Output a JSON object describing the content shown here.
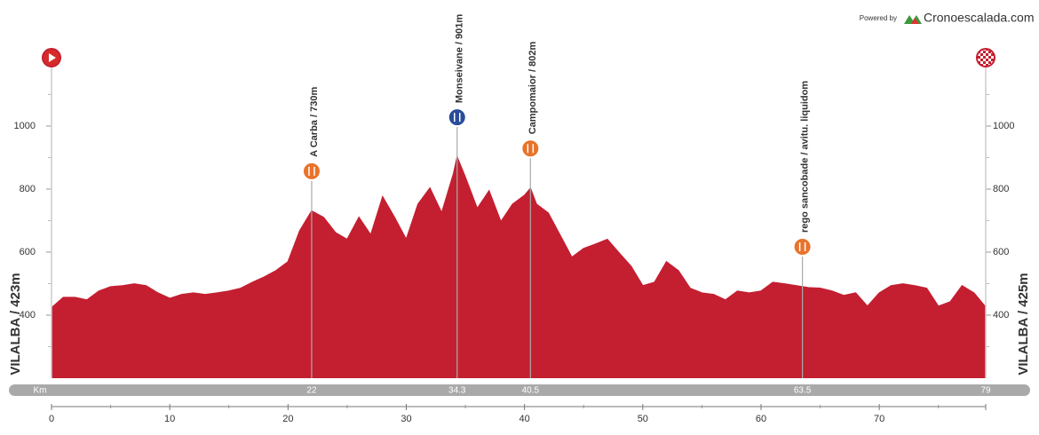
{
  "powered_by": "Powered by",
  "brand": "Cronoescalada.com",
  "chart_data": {
    "type": "area",
    "color": "#c41f30",
    "x": [
      0,
      1,
      2,
      3,
      4,
      5,
      6,
      7,
      8,
      9,
      10,
      11,
      12,
      13,
      14,
      15,
      16,
      17,
      18,
      19,
      20,
      21,
      22,
      23,
      24,
      25,
      26,
      27,
      28,
      29,
      30,
      31,
      32,
      33,
      34,
      34.3,
      35,
      36,
      37,
      38,
      39,
      40,
      40.5,
      41,
      42,
      43,
      44,
      45,
      46,
      47,
      48,
      49,
      50,
      51,
      52,
      53,
      54,
      55,
      56,
      57,
      58,
      59,
      60,
      61,
      62,
      63,
      64,
      65,
      66,
      67,
      68,
      69,
      70,
      71,
      72,
      73,
      74,
      75,
      76,
      77,
      78,
      79
    ],
    "values": [
      423,
      456,
      456,
      448,
      476,
      490,
      493,
      499,
      493,
      470,
      453,
      465,
      470,
      465,
      470,
      476,
      485,
      504,
      521,
      541,
      569,
      668,
      730,
      710,
      662,
      640,
      710,
      654,
      775,
      710,
      640,
      752,
      803,
      724,
      850,
      901,
      837,
      738,
      794,
      696,
      752,
      780,
      802,
      752,
      724,
      654,
      583,
      611,
      625,
      640,
      597,
      555,
      493,
      504,
      569,
      541,
      485,
      470,
      465,
      448,
      476,
      470,
      476,
      504,
      499,
      493,
      487,
      485,
      476,
      462,
      470,
      428,
      470,
      493,
      499,
      493,
      485,
      428,
      442,
      493,
      470,
      425
    ],
    "xlim": [
      0,
      79
    ],
    "xticks": [
      0,
      10,
      20,
      30,
      40,
      50,
      60,
      70
    ],
    "ylim": [
      200,
      1200
    ],
    "yticks": [
      400,
      600,
      800,
      1000
    ],
    "start_label": "VILALBA / 423m",
    "finish_label": "VILALBA / 425m",
    "km_label": "Km",
    "km_markers": [
      22,
      34.3,
      40.5,
      63.5,
      79
    ],
    "points": [
      {
        "label": "A Carba  / 730m",
        "x": 22,
        "color": "#e8732a"
      },
      {
        "label": "Monseivane / 901m",
        "x": 34.3,
        "color": "#2b4c9b"
      },
      {
        "label": "Campomaior  / 802m",
        "x": 40.5,
        "color": "#e8732a"
      },
      {
        "label": "rego sancobade / avitu. liquidom",
        "x": 63.5,
        "color": "#e8732a"
      }
    ]
  }
}
